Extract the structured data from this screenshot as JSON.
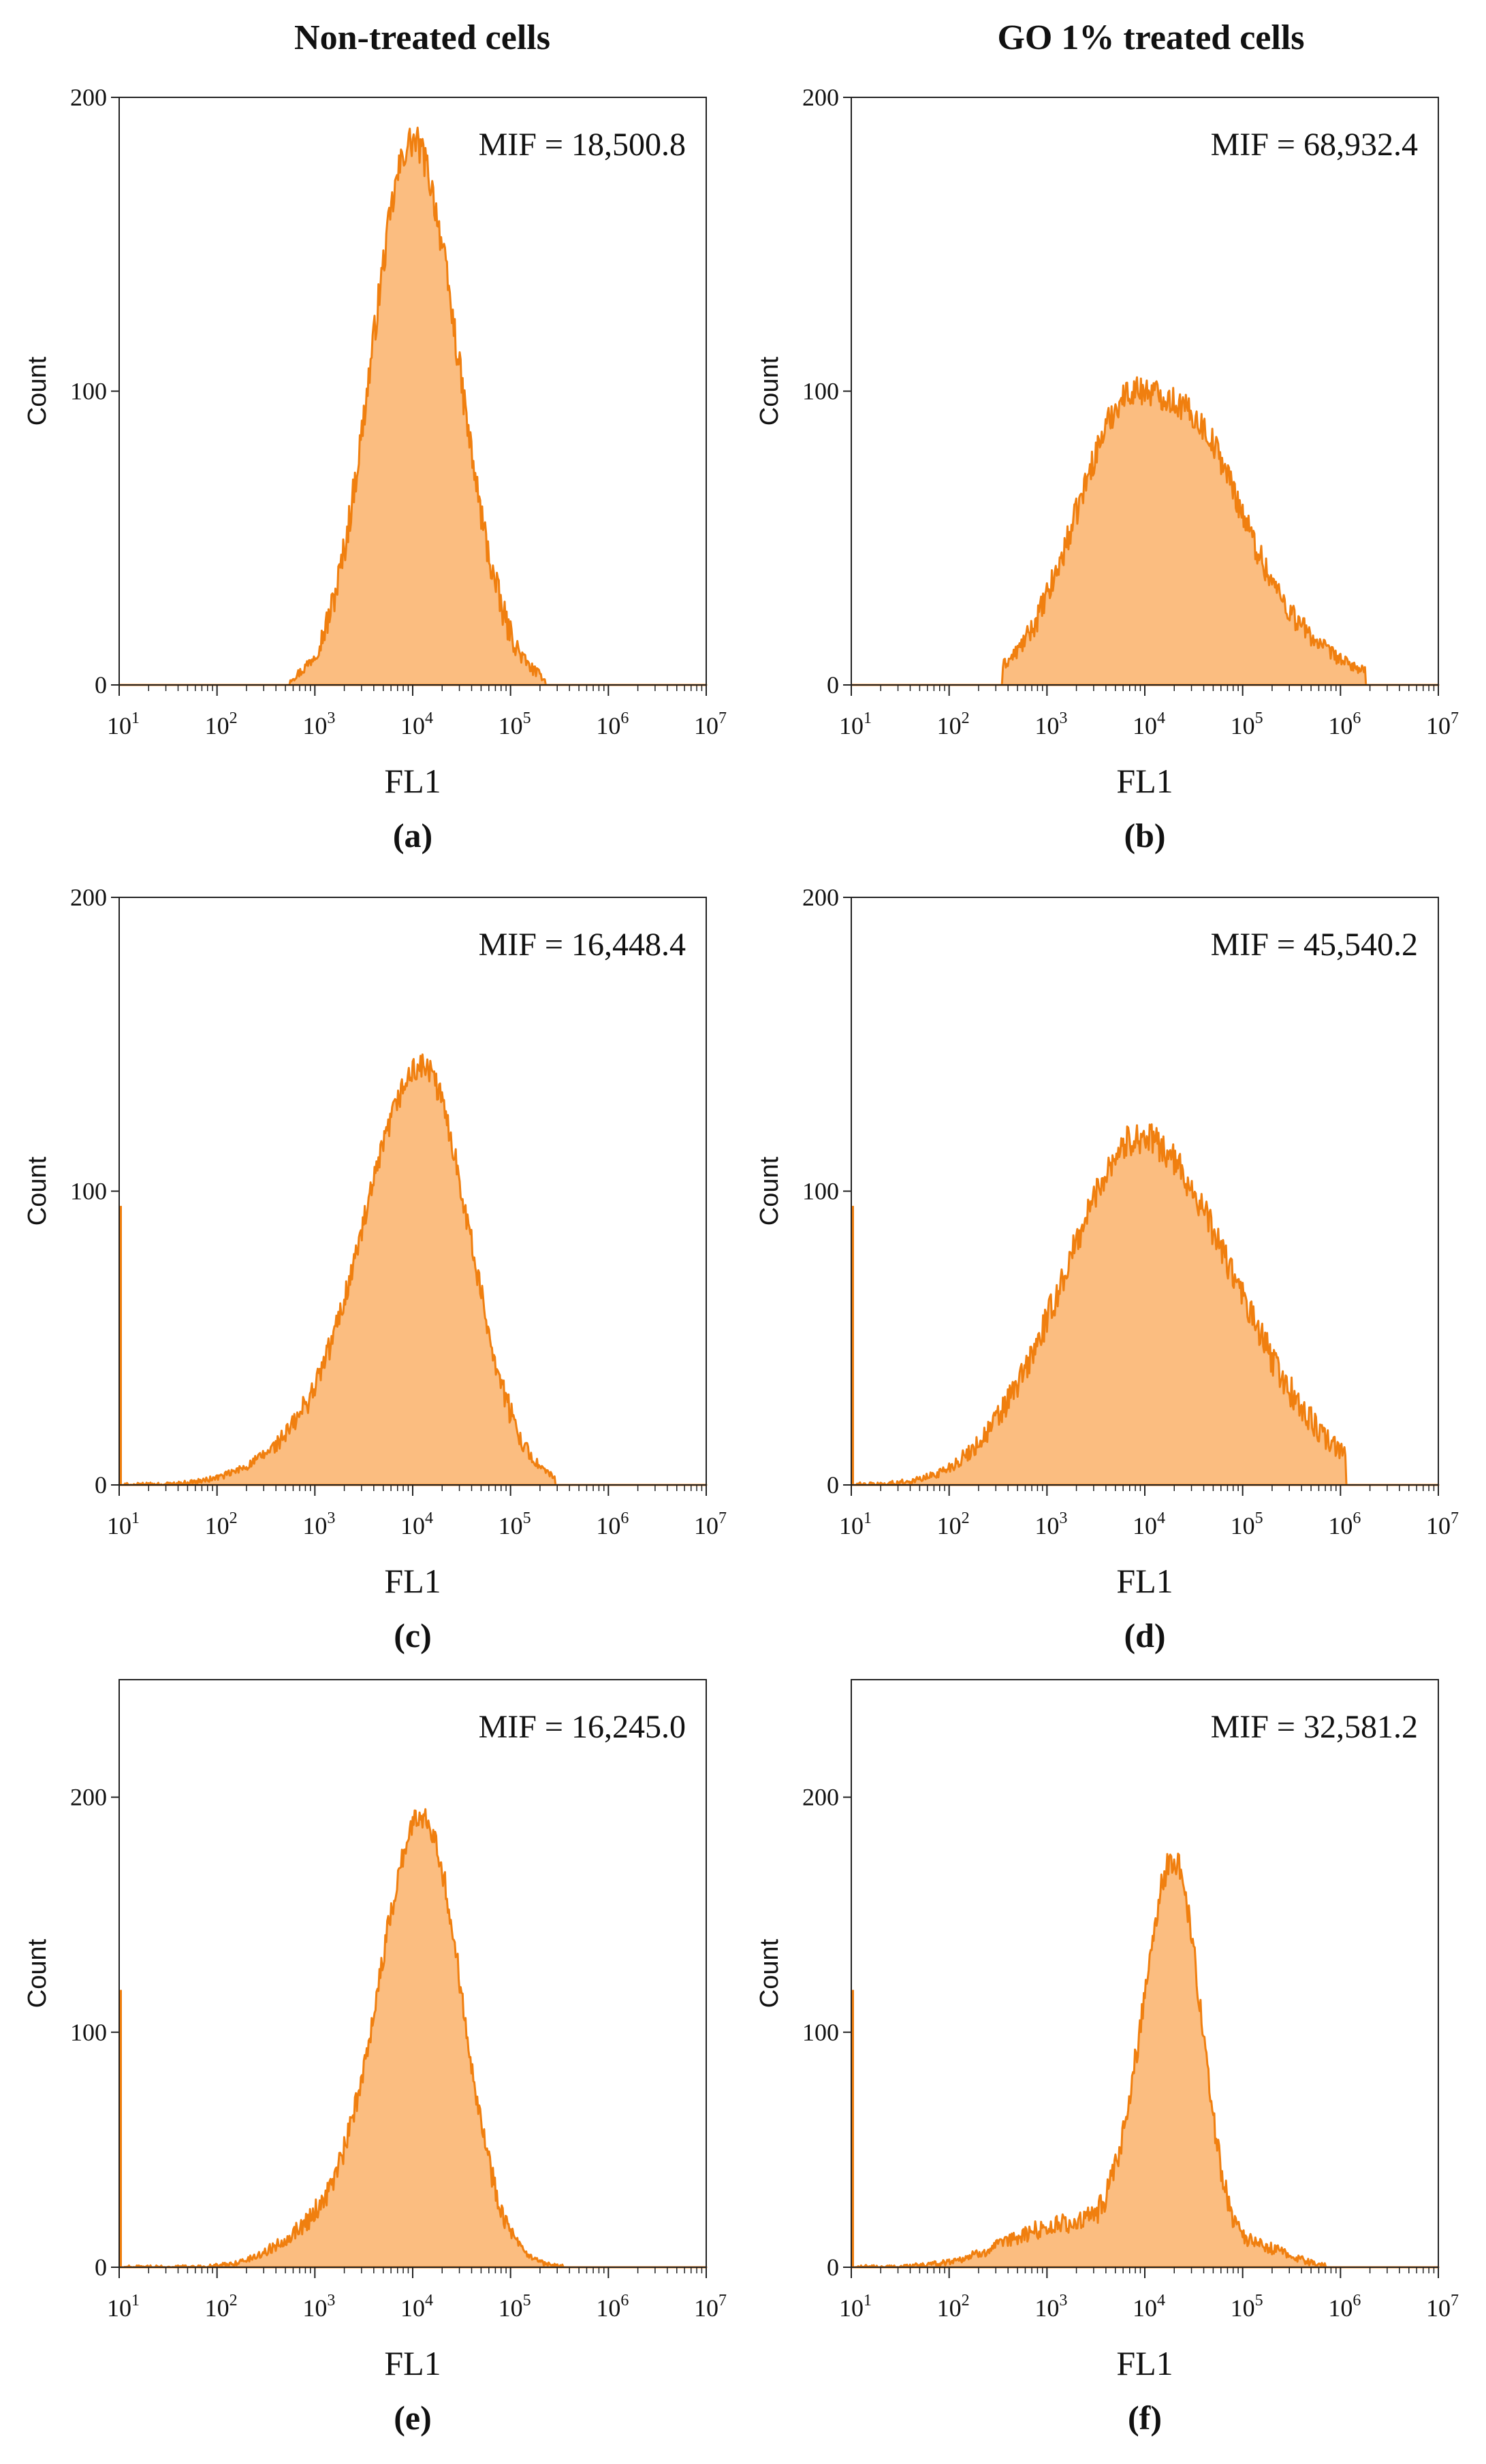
{
  "column_titles": [
    "Non-treated cells",
    "GO 1% treated cells"
  ],
  "colors": {
    "fill": "#fbbd80",
    "stroke": "#f07f0f",
    "axis": "#222222"
  },
  "chart_data": [
    {
      "type": "area",
      "panel_label": "(a)",
      "xlabel": "FL1",
      "ylabel": "Count",
      "annotation": "MIF = 18,500.8",
      "x_scale": "log10",
      "xlim": [
        1,
        7
      ],
      "ylim": [
        0,
        200
      ],
      "x_ticks": [
        1,
        2,
        3,
        4,
        5,
        6,
        7
      ],
      "y_ticks": [
        0,
        100,
        200
      ],
      "marker_at_left": 0,
      "histogram": {
        "log_mean": 4.0,
        "sd_left": 0.42,
        "sd_right": 0.46,
        "peak": 185,
        "start": 2.75,
        "end": 5.35,
        "noise": 12,
        "secondary": []
      }
    },
    {
      "type": "area",
      "panel_label": "(b)",
      "xlabel": "FL1",
      "ylabel": "Count",
      "annotation": "MIF = 68,932.4",
      "x_scale": "log10",
      "xlim": [
        1,
        7
      ],
      "ylim": [
        0,
        200
      ],
      "x_ticks": [
        1,
        2,
        3,
        4,
        5,
        6,
        7
      ],
      "y_ticks": [
        0,
        100,
        200
      ],
      "marker_at_left": 0,
      "histogram": {
        "log_mean": 3.9,
        "sd_left": 0.58,
        "sd_right": 0.95,
        "peak": 100,
        "start": 2.55,
        "end": 6.25,
        "noise": 10,
        "secondary": [
          [
            4.7,
            0.3,
            12
          ]
        ]
      }
    },
    {
      "type": "area",
      "panel_label": "(c)",
      "xlabel": "FL1",
      "ylabel": "Count",
      "annotation": "MIF = 16,448.4",
      "x_scale": "log10",
      "xlim": [
        1,
        7
      ],
      "ylim": [
        0,
        200
      ],
      "x_ticks": [
        1,
        2,
        3,
        4,
        5,
        6,
        7
      ],
      "y_ticks": [
        0,
        100,
        200
      ],
      "marker_at_left": 95,
      "histogram": {
        "log_mean": 4.1,
        "sd_left": 0.6,
        "sd_right": 0.48,
        "peak": 142,
        "start": 1.05,
        "end": 5.45,
        "noise": 9,
        "secondary": [
          [
            2.8,
            0.5,
            8
          ]
        ]
      }
    },
    {
      "type": "area",
      "panel_label": "(d)",
      "xlabel": "FL1",
      "ylabel": "Count",
      "annotation": "MIF = 45,540.2",
      "x_scale": "log10",
      "xlim": [
        1,
        7
      ],
      "ylim": [
        0,
        200
      ],
      "x_ticks": [
        1,
        2,
        3,
        4,
        5,
        6,
        7
      ],
      "y_ticks": [
        0,
        100,
        200
      ],
      "marker_at_left": 95,
      "histogram": {
        "log_mean": 3.95,
        "sd_left": 0.72,
        "sd_right": 0.95,
        "peak": 118,
        "start": 1.05,
        "end": 6.05,
        "noise": 11,
        "secondary": [
          [
            2.7,
            0.5,
            8
          ]
        ]
      }
    },
    {
      "type": "area",
      "panel_label": "(e)",
      "xlabel": "FL1",
      "ylabel": "Count",
      "annotation": "MIF = 16,245.0",
      "x_scale": "log10",
      "xlim": [
        1,
        7
      ],
      "ylim": [
        0,
        250
      ],
      "x_ticks": [
        1,
        2,
        3,
        4,
        5,
        6,
        7
      ],
      "y_ticks": [
        0,
        100,
        200
      ],
      "marker_at_left": 118,
      "histogram": {
        "log_mean": 4.1,
        "sd_left": 0.45,
        "sd_right": 0.4,
        "peak": 192,
        "start": 1.05,
        "end": 5.55,
        "noise": 11,
        "secondary": [
          [
            3.0,
            0.4,
            14
          ]
        ]
      }
    },
    {
      "type": "area",
      "panel_label": "(f)",
      "xlabel": "FL1",
      "ylabel": "Count",
      "annotation": "MIF = 32,581.2",
      "x_scale": "log10",
      "xlim": [
        1,
        7
      ],
      "ylim": [
        0,
        250
      ],
      "x_ticks": [
        1,
        2,
        3,
        4,
        5,
        6,
        7
      ],
      "y_ticks": [
        0,
        100,
        200
      ],
      "marker_at_left": 118,
      "histogram": {
        "log_mean": 4.3,
        "sd_left": 0.32,
        "sd_right": 0.28,
        "peak": 170,
        "start": 1.05,
        "end": 5.85,
        "noise": 12,
        "secondary": [
          [
            3.2,
            0.6,
            18
          ],
          [
            5.2,
            0.3,
            8
          ]
        ]
      }
    }
  ]
}
